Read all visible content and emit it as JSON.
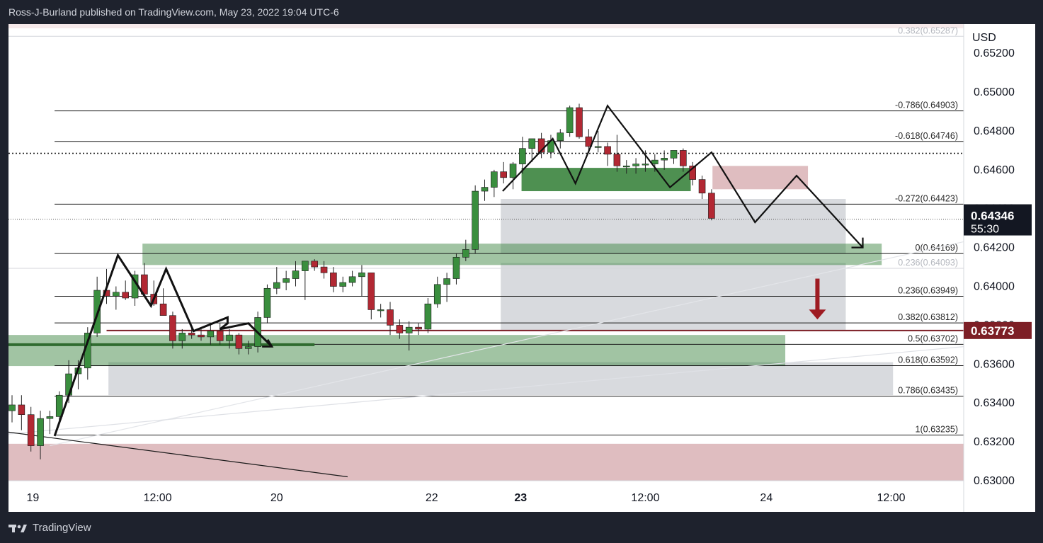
{
  "header": {
    "publisher_line": "Ross-J-Burland published on TradingView.com, May 23, 2022 19:04 UTC-6"
  },
  "footer": {
    "brand": "TradingView"
  },
  "colors": {
    "bull": "#3a8e3e",
    "bear": "#b22833",
    "price_tag": "#131722",
    "level_tag": "#7d1f26",
    "green_zone": "#2f7d32",
    "red_zone": "#b05a62",
    "grey_zone": "#9aa0ab"
  },
  "chart_data": {
    "type": "candlestick",
    "currency": "USD",
    "ylim": [
      0.63,
      0.6535
    ],
    "y_ticks": [
      "0.63000",
      "0.63200",
      "0.63400",
      "0.63600",
      "0.63800",
      "0.64000",
      "0.64200",
      "0.64400",
      "0.64600",
      "0.64800",
      "0.65000",
      "0.65200"
    ],
    "x_ticks": [
      {
        "label": "19",
        "i": 2.2,
        "bold": false
      },
      {
        "label": "12:00",
        "i": 15.4,
        "bold": false
      },
      {
        "label": "20",
        "i": 28.0,
        "bold": false
      },
      {
        "label": "22",
        "i": 44.4,
        "bold": false
      },
      {
        "label": "23",
        "i": 53.8,
        "bold": true
      },
      {
        "label": "12:00",
        "i": 67.0,
        "bold": false
      },
      {
        "label": "24",
        "i": 79.8,
        "bold": false
      },
      {
        "label": "12:00",
        "i": 93.0,
        "bold": false
      }
    ],
    "last_price": {
      "value": 0.64346,
      "label": "0.64346",
      "countdown": "55:30"
    },
    "level_tag": {
      "value": 0.63773,
      "label": "0.63773"
    },
    "current_dotted_level": 0.64685,
    "candles": [
      {
        "o": 0.6336,
        "h": 0.6344,
        "l": 0.633,
        "c": 0.6339
      },
      {
        "o": 0.6339,
        "h": 0.6344,
        "l": 0.6326,
        "c": 0.6334
      },
      {
        "o": 0.6334,
        "h": 0.6338,
        "l": 0.6315,
        "c": 0.6318
      },
      {
        "o": 0.6318,
        "h": 0.6336,
        "l": 0.6311,
        "c": 0.6332
      },
      {
        "o": 0.6332,
        "h": 0.6336,
        "l": 0.6324,
        "c": 0.6333
      },
      {
        "o": 0.6333,
        "h": 0.6346,
        "l": 0.6329,
        "c": 0.6344
      },
      {
        "o": 0.6344,
        "h": 0.6362,
        "l": 0.634,
        "c": 0.6355
      },
      {
        "o": 0.6355,
        "h": 0.6362,
        "l": 0.6347,
        "c": 0.6358
      },
      {
        "o": 0.6358,
        "h": 0.6379,
        "l": 0.6352,
        "c": 0.6376
      },
      {
        "o": 0.6376,
        "h": 0.6405,
        "l": 0.6374,
        "c": 0.6398
      },
      {
        "o": 0.6398,
        "h": 0.6409,
        "l": 0.6391,
        "c": 0.6395
      },
      {
        "o": 0.6395,
        "h": 0.64,
        "l": 0.6388,
        "c": 0.6397
      },
      {
        "o": 0.6397,
        "h": 0.6403,
        "l": 0.6393,
        "c": 0.6394
      },
      {
        "o": 0.6394,
        "h": 0.6408,
        "l": 0.639,
        "c": 0.6406
      },
      {
        "o": 0.6406,
        "h": 0.6412,
        "l": 0.6396,
        "c": 0.6396
      },
      {
        "o": 0.6396,
        "h": 0.6403,
        "l": 0.639,
        "c": 0.6391
      },
      {
        "o": 0.6391,
        "h": 0.6399,
        "l": 0.6385,
        "c": 0.6385
      },
      {
        "o": 0.6385,
        "h": 0.6387,
        "l": 0.6368,
        "c": 0.6372
      },
      {
        "o": 0.6372,
        "h": 0.6378,
        "l": 0.6368,
        "c": 0.6376
      },
      {
        "o": 0.6376,
        "h": 0.6379,
        "l": 0.6373,
        "c": 0.6375
      },
      {
        "o": 0.6375,
        "h": 0.6378,
        "l": 0.6372,
        "c": 0.6374
      },
      {
        "o": 0.6374,
        "h": 0.638,
        "l": 0.637,
        "c": 0.6377
      },
      {
        "o": 0.6377,
        "h": 0.6381,
        "l": 0.637,
        "c": 0.6372
      },
      {
        "o": 0.6372,
        "h": 0.6378,
        "l": 0.6368,
        "c": 0.6375
      },
      {
        "o": 0.6375,
        "h": 0.6376,
        "l": 0.6365,
        "c": 0.6368
      },
      {
        "o": 0.6368,
        "h": 0.6372,
        "l": 0.6365,
        "c": 0.6369
      },
      {
        "o": 0.6369,
        "h": 0.6387,
        "l": 0.6366,
        "c": 0.6384
      },
      {
        "o": 0.6384,
        "h": 0.6401,
        "l": 0.6381,
        "c": 0.6399
      },
      {
        "o": 0.6399,
        "h": 0.641,
        "l": 0.6396,
        "c": 0.6402
      },
      {
        "o": 0.6402,
        "h": 0.6408,
        "l": 0.6398,
        "c": 0.6404
      },
      {
        "o": 0.6404,
        "h": 0.6413,
        "l": 0.64,
        "c": 0.6408
      },
      {
        "o": 0.6408,
        "h": 0.6413,
        "l": 0.6393,
        "c": 0.6413
      },
      {
        "o": 0.6413,
        "h": 0.6414,
        "l": 0.6408,
        "c": 0.641
      },
      {
        "o": 0.641,
        "h": 0.6413,
        "l": 0.6404,
        "c": 0.6407
      },
      {
        "o": 0.6407,
        "h": 0.641,
        "l": 0.6397,
        "c": 0.64
      },
      {
        "o": 0.64,
        "h": 0.6405,
        "l": 0.6397,
        "c": 0.6402
      },
      {
        "o": 0.6402,
        "h": 0.6408,
        "l": 0.64,
        "c": 0.6405
      },
      {
        "o": 0.6405,
        "h": 0.6411,
        "l": 0.6395,
        "c": 0.6407
      },
      {
        "o": 0.6407,
        "h": 0.6407,
        "l": 0.6383,
        "c": 0.6388
      },
      {
        "o": 0.6388,
        "h": 0.6391,
        "l": 0.6384,
        "c": 0.6388
      },
      {
        "o": 0.6388,
        "h": 0.6392,
        "l": 0.6375,
        "c": 0.638
      },
      {
        "o": 0.638,
        "h": 0.6383,
        "l": 0.6373,
        "c": 0.6376
      },
      {
        "o": 0.6376,
        "h": 0.6382,
        "l": 0.6367,
        "c": 0.6379
      },
      {
        "o": 0.6379,
        "h": 0.6381,
        "l": 0.6375,
        "c": 0.6378
      },
      {
        "o": 0.6378,
        "h": 0.6394,
        "l": 0.6376,
        "c": 0.6391
      },
      {
        "o": 0.6391,
        "h": 0.6405,
        "l": 0.6389,
        "c": 0.6401
      },
      {
        "o": 0.6401,
        "h": 0.6407,
        "l": 0.6392,
        "c": 0.6404
      },
      {
        "o": 0.6404,
        "h": 0.6417,
        "l": 0.6401,
        "c": 0.6415
      },
      {
        "o": 0.6415,
        "h": 0.6424,
        "l": 0.6413,
        "c": 0.6419
      },
      {
        "o": 0.6419,
        "h": 0.6452,
        "l": 0.6417,
        "c": 0.6449
      },
      {
        "o": 0.6449,
        "h": 0.6455,
        "l": 0.6444,
        "c": 0.6451
      },
      {
        "o": 0.6451,
        "h": 0.646,
        "l": 0.6446,
        "c": 0.6459
      },
      {
        "o": 0.6459,
        "h": 0.6464,
        "l": 0.6453,
        "c": 0.6456
      },
      {
        "o": 0.6456,
        "h": 0.6464,
        "l": 0.645,
        "c": 0.6463
      },
      {
        "o": 0.6463,
        "h": 0.6477,
        "l": 0.6458,
        "c": 0.6471
      },
      {
        "o": 0.6471,
        "h": 0.6476,
        "l": 0.6464,
        "c": 0.6476
      },
      {
        "o": 0.6476,
        "h": 0.6479,
        "l": 0.6466,
        "c": 0.6469
      },
      {
        "o": 0.6469,
        "h": 0.6478,
        "l": 0.6466,
        "c": 0.6475
      },
      {
        "o": 0.6475,
        "h": 0.6481,
        "l": 0.6471,
        "c": 0.6479
      },
      {
        "o": 0.6479,
        "h": 0.6493,
        "l": 0.6477,
        "c": 0.6492
      },
      {
        "o": 0.6492,
        "h": 0.6494,
        "l": 0.6476,
        "c": 0.6477
      },
      {
        "o": 0.6477,
        "h": 0.6481,
        "l": 0.6469,
        "c": 0.6472
      },
      {
        "o": 0.6472,
        "h": 0.648,
        "l": 0.6469,
        "c": 0.6472
      },
      {
        "o": 0.6472,
        "h": 0.6474,
        "l": 0.6462,
        "c": 0.6468
      },
      {
        "o": 0.6468,
        "h": 0.6478,
        "l": 0.6459,
        "c": 0.6462
      },
      {
        "o": 0.6462,
        "h": 0.6465,
        "l": 0.6458,
        "c": 0.6462
      },
      {
        "o": 0.6462,
        "h": 0.6466,
        "l": 0.6458,
        "c": 0.6463
      },
      {
        "o": 0.6463,
        "h": 0.647,
        "l": 0.6459,
        "c": 0.6463
      },
      {
        "o": 0.6463,
        "h": 0.6468,
        "l": 0.6459,
        "c": 0.6465
      },
      {
        "o": 0.6465,
        "h": 0.647,
        "l": 0.646,
        "c": 0.6466
      },
      {
        "o": 0.6466,
        "h": 0.6469,
        "l": 0.6463,
        "c": 0.647
      },
      {
        "o": 0.647,
        "h": 0.6471,
        "l": 0.6459,
        "c": 0.6462
      },
      {
        "o": 0.6462,
        "h": 0.6464,
        "l": 0.6452,
        "c": 0.6455
      },
      {
        "o": 0.6455,
        "h": 0.6457,
        "l": 0.6445,
        "c": 0.6448
      },
      {
        "o": 0.6448,
        "h": 0.645,
        "l": 0.6434,
        "c": 0.6435
      }
    ],
    "fib_levels": [
      {
        "label": "0.382(0.65287)",
        "value": 0.65287,
        "faded": true
      },
      {
        "label": "-0.786(0.64903)",
        "value": 0.64903,
        "faded": false
      },
      {
        "label": "-0.618(0.64746)",
        "value": 0.64746,
        "faded": false
      },
      {
        "label": "-0.272(0.64423)",
        "value": 0.64423,
        "faded": false
      },
      {
        "label": "0(0.64169)",
        "value": 0.64169,
        "faded": false
      },
      {
        "label": "0.236(0.64093)",
        "value": 0.64093,
        "faded": true
      },
      {
        "label": "0.236(0.63949)",
        "value": 0.63949,
        "faded": false
      },
      {
        "label": "0.382(0.63812)",
        "value": 0.63812,
        "faded": false
      },
      {
        "label": "0.5(0.63702)",
        "value": 0.63702,
        "faded": false
      },
      {
        "label": "0.618(0.63592)",
        "value": 0.63592,
        "faded": false
      },
      {
        "label": "0.786(0.63435)",
        "value": 0.63435,
        "faded": false
      },
      {
        "label": "1(0.63235)",
        "value": 0.63235,
        "faded": false
      }
    ],
    "zones": [
      {
        "kind": "grey",
        "i0": 51.7,
        "i1": 88.2,
        "top": 0.6445,
        "bottom": 0.6417
      },
      {
        "kind": "grey",
        "i0": 51.7,
        "i1": 88.2,
        "top": 0.6412,
        "bottom": 0.6377
      },
      {
        "kind": "grey",
        "i0": 10.2,
        "i1": 93.2,
        "top": 0.6361,
        "bottom": 0.6344
      },
      {
        "kind": "green",
        "i0": 13.8,
        "i1": 92.0,
        "top": 0.6422,
        "bottom": 0.6411
      },
      {
        "kind": "green",
        "i0": -1.5,
        "i1": 81.8,
        "top": 0.6375,
        "bottom": 0.6359
      },
      {
        "kind": "green_dark",
        "i0": 53.9,
        "i1": 71.8,
        "top": 0.6461,
        "bottom": 0.6449
      },
      {
        "kind": "red",
        "i0": 74.1,
        "i1": 84.2,
        "top": 0.6462,
        "bottom": 0.645
      },
      {
        "kind": "red",
        "i0": -1.5,
        "i1": 104.0,
        "top": 0.6319,
        "bottom": 0.63
      }
    ],
    "pattern_path": [
      [
        4.5,
        0.6323
      ],
      [
        11.2,
        0.6416
      ],
      [
        14.7,
        0.639
      ],
      [
        16.3,
        0.6409
      ],
      [
        19.2,
        0.6377
      ],
      [
        22.8,
        0.6384
      ],
      [
        22.8,
        0.6381
      ],
      [
        22.0,
        0.6378
      ],
      [
        25.0,
        0.6381
      ],
      [
        27.5,
        0.6369
      ]
    ],
    "pattern_path_b": [
      [
        51.9,
        0.6449
      ],
      [
        57.2,
        0.6476
      ],
      [
        59.6,
        0.6453
      ],
      [
        63.0,
        0.6493
      ],
      [
        69.6,
        0.6451
      ],
      [
        74.0,
        0.6469
      ],
      [
        78.6,
        0.6433
      ],
      [
        83.0,
        0.6457
      ],
      [
        90.0,
        0.642
      ]
    ],
    "support_line": {
      "i0": -1.5,
      "i1": 32.0,
      "value": 0.637
    },
    "trend_line": {
      "i0": -1.5,
      "i1": 35.5,
      "v0": 0.6325,
      "v1": 0.6302
    },
    "down_arrow": {
      "i": 85.2,
      "top": 0.6404,
      "bottom": 0.6383
    }
  }
}
